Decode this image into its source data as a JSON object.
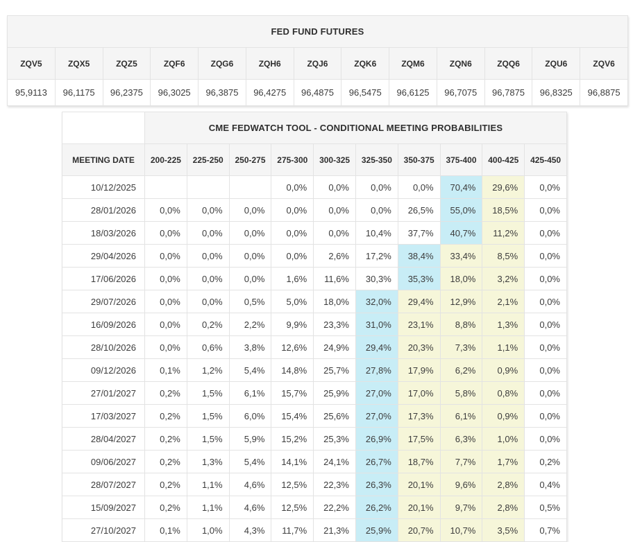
{
  "colors": {
    "cyan_highlight": "#c8edf6",
    "yellow_highlight": "#f6f6d9",
    "header_background": "#f5f5f5",
    "cell_border": "#e3e3e3"
  },
  "chart_data": [
    {
      "type": "table",
      "title": "FED FUND FUTURES",
      "columns": [
        "ZQV5",
        "ZQX5",
        "ZQZ5",
        "ZQF6",
        "ZQG6",
        "ZQH6",
        "ZQJ6",
        "ZQK6",
        "ZQM6",
        "ZQN6",
        "ZQQ6",
        "ZQU6",
        "ZQV6"
      ],
      "rows": [
        [
          "95,9113",
          "96,1175",
          "96,2375",
          "96,3025",
          "96,3875",
          "96,4275",
          "96,4875",
          "96,5475",
          "96,6125",
          "96,7075",
          "96,7875",
          "96,8325",
          "96,8875"
        ]
      ]
    },
    {
      "type": "table",
      "title": "CME FEDWATCH TOOL - CONDITIONAL MEETING PROBABILITIES",
      "columns": [
        "MEETING DATE",
        "200-225",
        "225-250",
        "250-275",
        "275-300",
        "300-325",
        "325-350",
        "350-375",
        "375-400",
        "400-425",
        "425-450"
      ],
      "highlight_legend": {
        "c": "cyan_highlight",
        "y": "yellow_highlight"
      },
      "rows": [
        {
          "date": "10/12/2025",
          "values": [
            "",
            "",
            "",
            "0,0%",
            "0,0%",
            "0,0%",
            "0,0%",
            "70,4%",
            "29,6%",
            "0,0%"
          ],
          "marks": [
            "",
            "",
            "",
            "",
            "",
            "",
            "",
            "c",
            "y",
            ""
          ]
        },
        {
          "date": "28/01/2026",
          "values": [
            "0,0%",
            "0,0%",
            "0,0%",
            "0,0%",
            "0,0%",
            "0,0%",
            "26,5%",
            "55,0%",
            "18,5%",
            "0,0%"
          ],
          "marks": [
            "",
            "",
            "",
            "",
            "",
            "",
            "",
            "c",
            "y",
            ""
          ]
        },
        {
          "date": "18/03/2026",
          "values": [
            "0,0%",
            "0,0%",
            "0,0%",
            "0,0%",
            "0,0%",
            "10,4%",
            "37,7%",
            "40,7%",
            "11,2%",
            "0,0%"
          ],
          "marks": [
            "",
            "",
            "",
            "",
            "",
            "",
            "",
            "c",
            "y",
            ""
          ]
        },
        {
          "date": "29/04/2026",
          "values": [
            "0,0%",
            "0,0%",
            "0,0%",
            "0,0%",
            "2,6%",
            "17,2%",
            "38,4%",
            "33,4%",
            "8,5%",
            "0,0%"
          ],
          "marks": [
            "",
            "",
            "",
            "",
            "",
            "",
            "c",
            "y",
            "y",
            ""
          ]
        },
        {
          "date": "17/06/2026",
          "values": [
            "0,0%",
            "0,0%",
            "0,0%",
            "1,6%",
            "11,6%",
            "30,3%",
            "35,3%",
            "18,0%",
            "3,2%",
            "0,0%"
          ],
          "marks": [
            "",
            "",
            "",
            "",
            "",
            "",
            "c",
            "y",
            "y",
            ""
          ]
        },
        {
          "date": "29/07/2026",
          "values": [
            "0,0%",
            "0,0%",
            "0,5%",
            "5,0%",
            "18,0%",
            "32,0%",
            "29,4%",
            "12,9%",
            "2,1%",
            "0,0%"
          ],
          "marks": [
            "",
            "",
            "",
            "",
            "",
            "c",
            "y",
            "y",
            "y",
            ""
          ]
        },
        {
          "date": "16/09/2026",
          "values": [
            "0,0%",
            "0,2%",
            "2,2%",
            "9,9%",
            "23,3%",
            "31,0%",
            "23,1%",
            "8,8%",
            "1,3%",
            "0,0%"
          ],
          "marks": [
            "",
            "",
            "",
            "",
            "",
            "c",
            "y",
            "y",
            "y",
            ""
          ]
        },
        {
          "date": "28/10/2026",
          "values": [
            "0,0%",
            "0,6%",
            "3,8%",
            "12,6%",
            "24,9%",
            "29,4%",
            "20,3%",
            "7,3%",
            "1,1%",
            "0,0%"
          ],
          "marks": [
            "",
            "",
            "",
            "",
            "",
            "c",
            "y",
            "y",
            "y",
            ""
          ]
        },
        {
          "date": "09/12/2026",
          "values": [
            "0,1%",
            "1,2%",
            "5,4%",
            "14,8%",
            "25,7%",
            "27,8%",
            "17,9%",
            "6,2%",
            "0,9%",
            "0,0%"
          ],
          "marks": [
            "",
            "",
            "",
            "",
            "",
            "c",
            "y",
            "y",
            "y",
            ""
          ]
        },
        {
          "date": "27/01/2027",
          "values": [
            "0,2%",
            "1,5%",
            "6,1%",
            "15,7%",
            "25,9%",
            "27,0%",
            "17,0%",
            "5,8%",
            "0,8%",
            "0,0%"
          ],
          "marks": [
            "",
            "",
            "",
            "",
            "",
            "c",
            "y",
            "y",
            "y",
            ""
          ]
        },
        {
          "date": "17/03/2027",
          "values": [
            "0,2%",
            "1,5%",
            "6,0%",
            "15,4%",
            "25,6%",
            "27,0%",
            "17,3%",
            "6,1%",
            "0,9%",
            "0,0%"
          ],
          "marks": [
            "",
            "",
            "",
            "",
            "",
            "c",
            "y",
            "y",
            "y",
            ""
          ]
        },
        {
          "date": "28/04/2027",
          "values": [
            "0,2%",
            "1,5%",
            "5,9%",
            "15,2%",
            "25,3%",
            "26,9%",
            "17,5%",
            "6,3%",
            "1,0%",
            "0,0%"
          ],
          "marks": [
            "",
            "",
            "",
            "",
            "",
            "c",
            "y",
            "y",
            "y",
            ""
          ]
        },
        {
          "date": "09/06/2027",
          "values": [
            "0,2%",
            "1,3%",
            "5,4%",
            "14,1%",
            "24,1%",
            "26,7%",
            "18,7%",
            "7,7%",
            "1,7%",
            "0,2%"
          ],
          "marks": [
            "",
            "",
            "",
            "",
            "",
            "c",
            "y",
            "y",
            "y",
            ""
          ]
        },
        {
          "date": "28/07/2027",
          "values": [
            "0,2%",
            "1,1%",
            "4,6%",
            "12,5%",
            "22,3%",
            "26,3%",
            "20,1%",
            "9,6%",
            "2,8%",
            "0,4%"
          ],
          "marks": [
            "",
            "",
            "",
            "",
            "",
            "c",
            "y",
            "y",
            "y",
            ""
          ]
        },
        {
          "date": "15/09/2027",
          "values": [
            "0,2%",
            "1,1%",
            "4,6%",
            "12,5%",
            "22,2%",
            "26,2%",
            "20,1%",
            "9,7%",
            "2,8%",
            "0,5%"
          ],
          "marks": [
            "",
            "",
            "",
            "",
            "",
            "c",
            "y",
            "y",
            "y",
            ""
          ]
        },
        {
          "date": "27/10/2027",
          "values": [
            "0,1%",
            "1,0%",
            "4,3%",
            "11,7%",
            "21,3%",
            "25,9%",
            "20,7%",
            "10,7%",
            "3,5%",
            "0,7%"
          ],
          "marks": [
            "",
            "",
            "",
            "",
            "",
            "c",
            "y",
            "y",
            "y",
            ""
          ]
        }
      ]
    }
  ]
}
